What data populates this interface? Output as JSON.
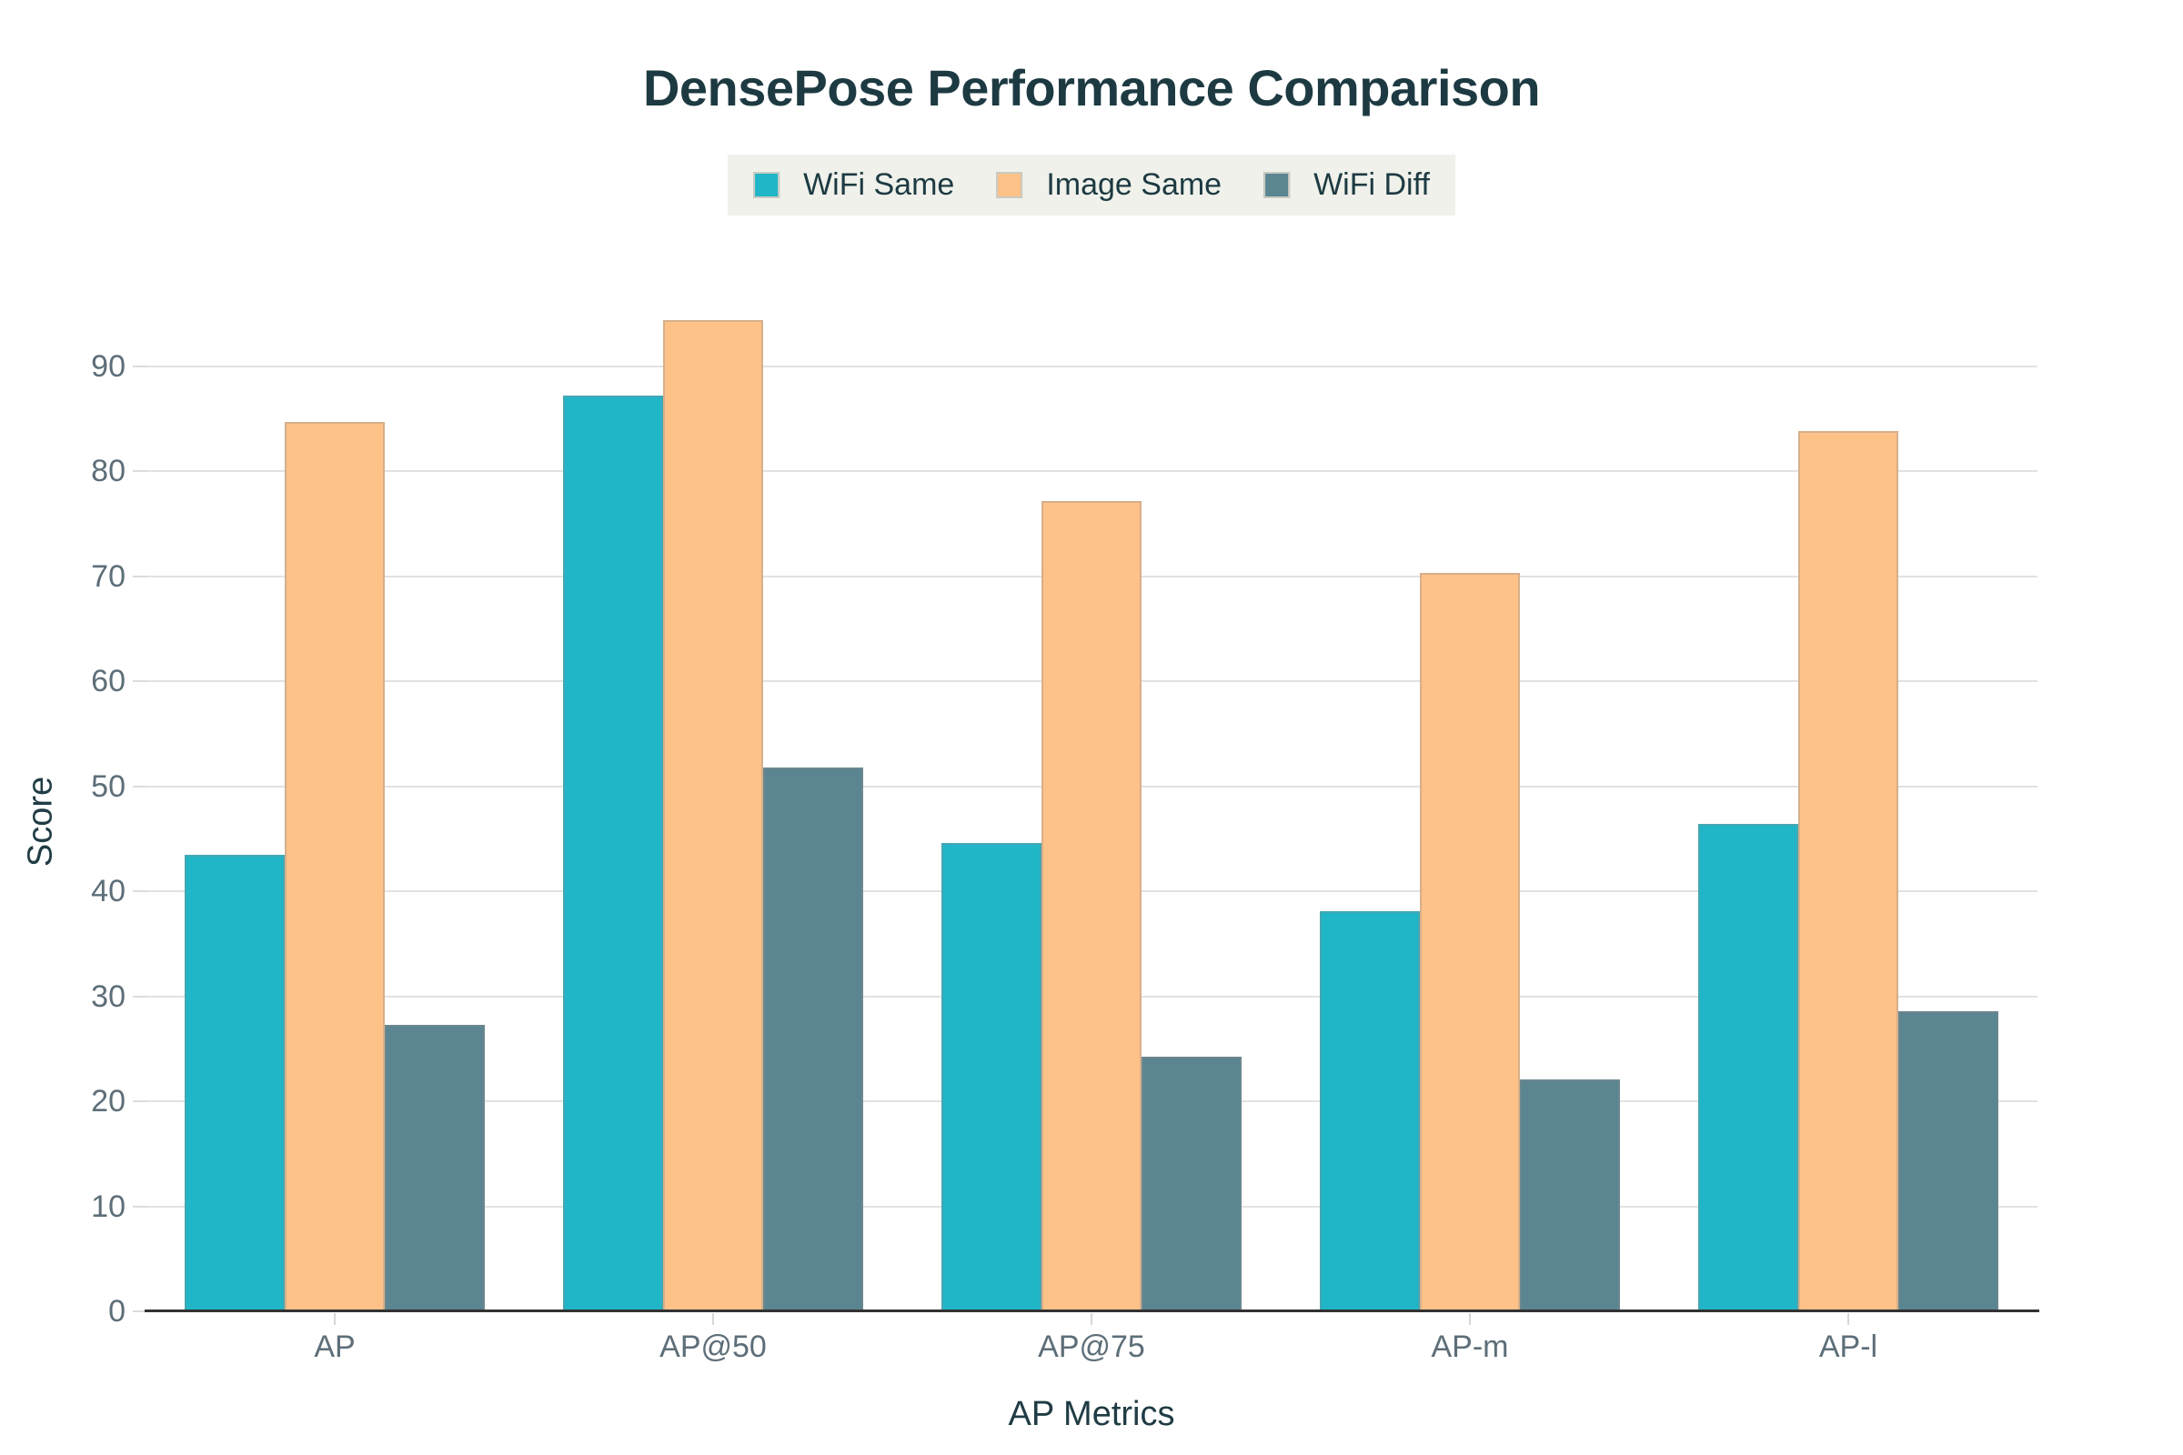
{
  "title": "DensePose Performance Comparison",
  "chart_data": {
    "type": "bar",
    "title": "DensePose Performance Comparison",
    "xlabel": "AP Metrics",
    "ylabel": "Score",
    "categories": [
      "AP",
      "AP@50",
      "AP@75",
      "AP-m",
      "AP-l"
    ],
    "series": [
      {
        "name": "WiFi Same",
        "color": "#20b5c7",
        "values": [
          43.5,
          87.2,
          44.6,
          38.1,
          46.4
        ]
      },
      {
        "name": "Image Same",
        "color": "#fec289",
        "values": [
          84.7,
          94.4,
          77.1,
          70.3,
          83.8
        ]
      },
      {
        "name": "WiFi Diff",
        "color": "#5a8591",
        "values": [
          27.3,
          51.8,
          24.2,
          22.1,
          28.6
        ]
      }
    ],
    "yticks": [
      0,
      10,
      20,
      30,
      40,
      50,
      60,
      70,
      80,
      90
    ],
    "ylim": [
      0,
      95
    ],
    "grid": true,
    "legend_position": "top-center"
  },
  "colors": {
    "background": "#ffffff",
    "title_text": "#1d3a42",
    "axis_title_text": "#203c44",
    "tick_text": "#5d6e78",
    "gridline": "#e2e2e2",
    "axis_line": "#323232",
    "legend_background": "#eff1ea",
    "series_wifi_same": "#20b5c7",
    "series_image_same": "#fec289",
    "series_wifi_diff": "#5a8591"
  }
}
